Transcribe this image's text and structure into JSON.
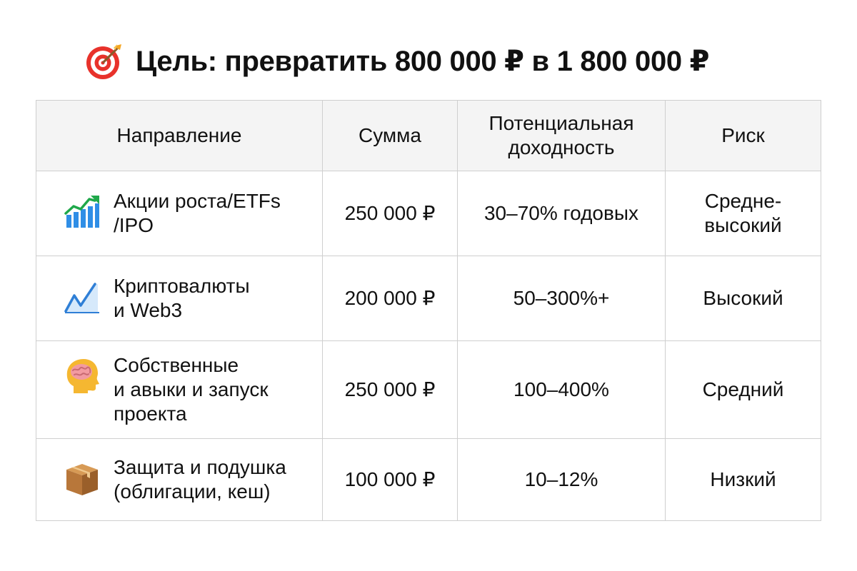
{
  "title": {
    "icon": "target-icon",
    "text": "Цель: превратить 800 000 ₽ в 1 800 000 ₽"
  },
  "table": {
    "headers": [
      "Направление",
      "Сумма",
      "Потенциальная доходность",
      "Риск"
    ],
    "rows": [
      {
        "icon": "chart-increasing-icon",
        "direction": "Акции роста/ETFs\n/IPO",
        "amount": "250 000 ₽",
        "return": "30–70% годовых",
        "risk": "Средне-\nвысокий"
      },
      {
        "icon": "line-chart-icon",
        "direction": "Криптовалюты\nи Web3",
        "amount": "200 000 ₽",
        "return": "50–300%+",
        "risk": "Высокий"
      },
      {
        "icon": "head-brain-icon",
        "direction": "Собственные\nи авыки и запуск\nпроекта",
        "amount": "250 000 ₽",
        "return": "100–400%",
        "risk": "Средний"
      },
      {
        "icon": "package-box-icon",
        "direction": "Защита и подушка\n(облигации, кеш)",
        "amount": "100 000 ₽",
        "return": "10–12%",
        "risk": "Низкий"
      }
    ]
  },
  "colors": {
    "header_background": "#f4f4f4",
    "border": "#cfcfcf",
    "text": "#111111"
  }
}
